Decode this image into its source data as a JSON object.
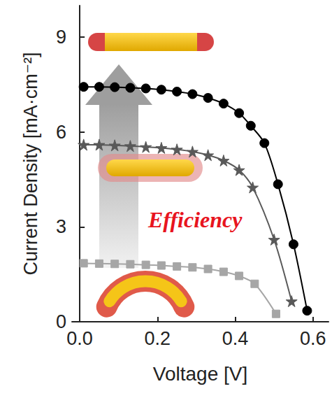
{
  "chart_data": {
    "type": "line",
    "x_label": "Voltage [V]",
    "y_label": "Current Density [mA·cm⁻²]",
    "annotations": [
      "Efficiency"
    ],
    "xlim": [
      -0.02,
      0.64
    ],
    "xticks": [
      {
        "value": 0,
        "label": "0.0"
      },
      0.2,
      0.4,
      0.6
    ],
    "ylim": [
      0,
      10
    ],
    "yticks": [
      0,
      3,
      6,
      9
    ],
    "grid": false,
    "series": [
      {
        "color": "#000000",
        "marker": "circle",
        "line_style": "solid",
        "x": [
          0.01,
          0.05,
          0.09,
          0.13,
          0.17,
          0.21,
          0.25,
          0.29,
          0.33,
          0.37,
          0.41,
          0.44,
          0.475,
          0.51,
          0.55,
          0.585
        ],
        "values": [
          7.43,
          7.43,
          7.42,
          7.4,
          7.38,
          7.34,
          7.28,
          7.2,
          7.08,
          6.9,
          6.6,
          6.2,
          5.65,
          4.35,
          2.45,
          0.35
        ]
      },
      {
        "color": "#595959",
        "marker": "star",
        "line_style": "solid",
        "x": [
          0.01,
          0.05,
          0.09,
          0.13,
          0.17,
          0.21,
          0.25,
          0.29,
          0.33,
          0.37,
          0.41,
          0.445,
          0.5,
          0.545
        ],
        "values": [
          5.6,
          5.6,
          5.58,
          5.56,
          5.53,
          5.5,
          5.45,
          5.38,
          5.27,
          5.1,
          4.8,
          4.25,
          2.6,
          0.65
        ]
      },
      {
        "color": "#a6a6a6",
        "marker": "square",
        "line_style": "solid",
        "x": [
          0.01,
          0.05,
          0.09,
          0.13,
          0.17,
          0.21,
          0.25,
          0.29,
          0.33,
          0.37,
          0.41,
          0.45,
          0.505
        ],
        "values": [
          1.85,
          1.84,
          1.83,
          1.82,
          1.8,
          1.78,
          1.75,
          1.72,
          1.67,
          1.58,
          1.45,
          1.2,
          0.25
        ]
      }
    ]
  }
}
